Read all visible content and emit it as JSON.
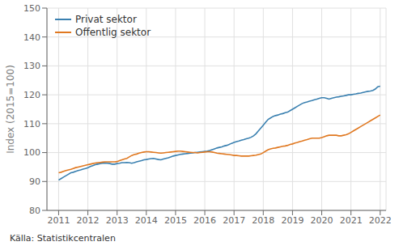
{
  "chart_data": {
    "type": "line",
    "ylabel": "Index (2015=100)",
    "source": "Källa: Statistikcentralen",
    "legend": "upper left",
    "grid": true,
    "xlim": [
      2010.6,
      2022.2
    ],
    "xticks": [
      2011,
      2012,
      2013,
      2014,
      2015,
      2016,
      2017,
      2018,
      2019,
      2020,
      2021,
      2022
    ],
    "ylim": [
      80,
      150
    ],
    "yticks": [
      80,
      90,
      100,
      110,
      120,
      130,
      140,
      150
    ],
    "x": [
      2011.0,
      2011.083,
      2011.167,
      2011.25,
      2011.333,
      2011.417,
      2011.5,
      2011.583,
      2011.667,
      2011.75,
      2011.833,
      2011.917,
      2012.0,
      2012.083,
      2012.167,
      2012.25,
      2012.333,
      2012.417,
      2012.5,
      2012.583,
      2012.667,
      2012.75,
      2012.833,
      2012.917,
      2013.0,
      2013.083,
      2013.167,
      2013.25,
      2013.333,
      2013.417,
      2013.5,
      2013.583,
      2013.667,
      2013.75,
      2013.833,
      2013.917,
      2014.0,
      2014.083,
      2014.167,
      2014.25,
      2014.333,
      2014.417,
      2014.5,
      2014.583,
      2014.667,
      2014.75,
      2014.833,
      2014.917,
      2015.0,
      2015.083,
      2015.167,
      2015.25,
      2015.333,
      2015.417,
      2015.5,
      2015.583,
      2015.667,
      2015.75,
      2015.833,
      2015.917,
      2016.0,
      2016.083,
      2016.167,
      2016.25,
      2016.333,
      2016.417,
      2016.5,
      2016.583,
      2016.667,
      2016.75,
      2016.833,
      2016.917,
      2017.0,
      2017.083,
      2017.167,
      2017.25,
      2017.333,
      2017.417,
      2017.5,
      2017.583,
      2017.667,
      2017.75,
      2017.833,
      2017.917,
      2018.0,
      2018.083,
      2018.167,
      2018.25,
      2018.333,
      2018.417,
      2018.5,
      2018.583,
      2018.667,
      2018.75,
      2018.833,
      2018.917,
      2019.0,
      2019.083,
      2019.167,
      2019.25,
      2019.333,
      2019.417,
      2019.5,
      2019.583,
      2019.667,
      2019.75,
      2019.833,
      2019.917,
      2020.0,
      2020.083,
      2020.167,
      2020.25,
      2020.333,
      2020.417,
      2020.5,
      2020.583,
      2020.667,
      2020.75,
      2020.833,
      2020.917,
      2021.0,
      2021.083,
      2021.167,
      2021.25,
      2021.333,
      2021.417,
      2021.5,
      2021.583,
      2021.667,
      2021.75,
      2021.833,
      2021.917,
      2022.0
    ],
    "series": [
      {
        "name": "Privat sektor",
        "color": "#3a80b0",
        "values": [
          90.5,
          91.0,
          91.5,
          92.0,
          92.5,
          93.0,
          93.2,
          93.5,
          93.8,
          94.0,
          94.3,
          94.5,
          94.8,
          95.2,
          95.5,
          95.8,
          96.0,
          96.2,
          96.3,
          96.4,
          96.3,
          96.2,
          96.0,
          96.0,
          96.2,
          96.3,
          96.5,
          96.5,
          96.6,
          96.5,
          96.3,
          96.5,
          96.8,
          97.0,
          97.2,
          97.5,
          97.6,
          97.8,
          97.9,
          98.0,
          97.8,
          97.6,
          97.5,
          97.8,
          98.0,
          98.2,
          98.5,
          98.8,
          99.0,
          99.2,
          99.4,
          99.5,
          99.6,
          99.7,
          99.8,
          99.9,
          100.0,
          100.1,
          100.2,
          100.3,
          100.4,
          100.5,
          100.7,
          101.0,
          101.3,
          101.6,
          101.8,
          102.0,
          102.3,
          102.5,
          102.8,
          103.2,
          103.5,
          103.8,
          104.0,
          104.3,
          104.5,
          104.8,
          105.0,
          105.3,
          105.8,
          106.5,
          107.5,
          108.5,
          109.5,
          110.5,
          111.5,
          112.0,
          112.5,
          112.8,
          113.0,
          113.3,
          113.5,
          113.8,
          114.0,
          114.5,
          115.0,
          115.5,
          116.0,
          116.5,
          117.0,
          117.3,
          117.5,
          117.8,
          118.0,
          118.3,
          118.5,
          118.8,
          119.0,
          119.0,
          118.8,
          118.5,
          118.8,
          119.0,
          119.2,
          119.3,
          119.5,
          119.6,
          119.8,
          120.0,
          120.0,
          120.2,
          120.3,
          120.5,
          120.6,
          120.8,
          121.0,
          121.2,
          121.3,
          121.5,
          122.0,
          122.8,
          123.0
        ]
      },
      {
        "name": "Offentlig sektor",
        "color": "#e07820",
        "values": [
          93.0,
          93.2,
          93.5,
          93.8,
          94.0,
          94.2,
          94.5,
          94.8,
          95.0,
          95.2,
          95.4,
          95.6,
          95.8,
          96.0,
          96.2,
          96.4,
          96.5,
          96.6,
          96.7,
          96.8,
          96.8,
          96.8,
          96.8,
          96.8,
          96.9,
          97.2,
          97.5,
          97.8,
          98.0,
          98.5,
          99.0,
          99.3,
          99.5,
          99.8,
          100.0,
          100.2,
          100.3,
          100.3,
          100.2,
          100.1,
          100.0,
          99.9,
          99.8,
          99.9,
          100.0,
          100.1,
          100.2,
          100.3,
          100.4,
          100.5,
          100.5,
          100.4,
          100.3,
          100.2,
          100.1,
          100.0,
          100.0,
          99.9,
          100.0,
          100.1,
          100.2,
          100.3,
          100.3,
          100.2,
          100.0,
          99.8,
          99.7,
          99.6,
          99.5,
          99.4,
          99.3,
          99.2,
          99.0,
          99.0,
          98.9,
          98.8,
          98.8,
          98.8,
          98.8,
          98.9,
          99.0,
          99.1,
          99.3,
          99.5,
          100.0,
          100.5,
          101.0,
          101.3,
          101.5,
          101.6,
          101.8,
          102.0,
          102.2,
          102.3,
          102.5,
          102.8,
          103.0,
          103.3,
          103.5,
          103.8,
          104.0,
          104.3,
          104.5,
          104.8,
          105.0,
          105.0,
          105.0,
          105.0,
          105.2,
          105.5,
          105.8,
          106.0,
          106.0,
          106.0,
          106.0,
          105.8,
          105.8,
          106.0,
          106.2,
          106.5,
          107.0,
          107.5,
          108.0,
          108.5,
          109.0,
          109.5,
          110.0,
          110.5,
          111.0,
          111.5,
          112.0,
          112.5,
          113.0
        ]
      }
    ]
  }
}
